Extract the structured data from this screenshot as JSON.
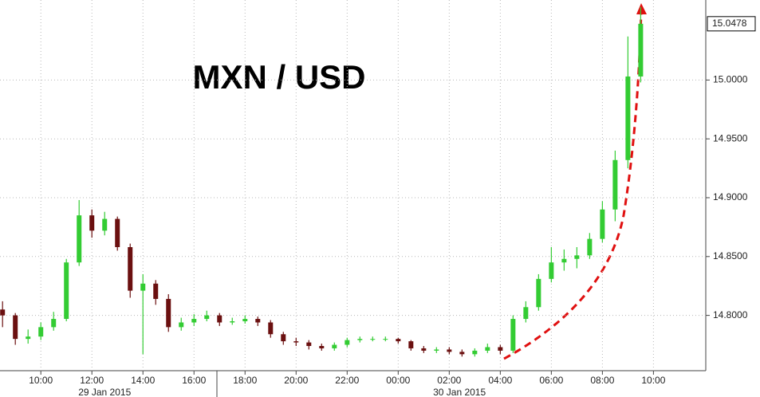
{
  "chart_data": {
    "type": "candlestick",
    "title": "MXN / USD",
    "x": [
      8.5,
      9,
      9.5,
      10,
      10.5,
      11,
      11.5,
      12,
      12.5,
      13,
      13.5,
      14,
      14.5,
      15,
      15.5,
      16,
      16.5,
      17,
      17.5,
      18,
      18.5,
      19,
      19.5,
      20,
      20.5,
      21,
      21.5,
      22,
      22.5,
      23,
      23.5,
      24,
      24.5,
      25,
      25.5,
      26,
      26.5,
      27,
      27.5,
      28,
      28.5,
      29,
      29.5,
      30,
      30.5,
      31,
      31.5,
      32,
      32.5,
      33,
      33.5
    ],
    "open": [
      14.805,
      14.8,
      14.78,
      14.782,
      14.79,
      14.797,
      14.845,
      14.885,
      14.872,
      14.882,
      14.858,
      14.821,
      14.827,
      14.814,
      14.79,
      14.794,
      14.797,
      14.8,
      14.794,
      14.795,
      14.797,
      14.794,
      14.784,
      14.778,
      14.777,
      14.774,
      14.772,
      14.775,
      14.779,
      14.78,
      14.78,
      14.78,
      14.778,
      14.772,
      14.77,
      14.771,
      14.769,
      14.767,
      14.77,
      14.773,
      14.77,
      14.797,
      14.807,
      14.831,
      14.845,
      14.848,
      14.851,
      14.865,
      14.89,
      14.932,
      15.003
    ],
    "high": [
      14.812,
      14.802,
      14.788,
      14.794,
      14.803,
      14.848,
      14.898,
      14.89,
      14.888,
      14.884,
      14.861,
      14.835,
      14.83,
      14.818,
      14.798,
      14.801,
      14.804,
      14.802,
      14.798,
      14.8,
      14.799,
      14.796,
      14.786,
      14.781,
      14.779,
      14.776,
      14.777,
      14.781,
      14.782,
      14.782,
      14.782,
      14.781,
      14.779,
      14.774,
      14.773,
      14.773,
      14.771,
      14.772,
      14.776,
      14.775,
      14.8,
      14.812,
      14.835,
      14.858,
      14.856,
      14.858,
      14.87,
      14.897,
      14.94,
      15.037,
      15.062
    ],
    "low": [
      14.79,
      14.775,
      14.776,
      14.779,
      14.787,
      14.795,
      14.842,
      14.866,
      14.868,
      14.855,
      14.815,
      14.767,
      14.809,
      14.786,
      14.787,
      14.791,
      14.795,
      14.791,
      14.792,
      14.793,
      14.791,
      14.781,
      14.775,
      14.774,
      14.771,
      14.77,
      14.77,
      14.773,
      14.777,
      14.778,
      14.778,
      14.776,
      14.77,
      14.768,
      14.768,
      14.767,
      14.765,
      14.765,
      14.768,
      14.767,
      14.768,
      14.794,
      14.804,
      14.828,
      14.838,
      14.84,
      14.848,
      14.862,
      14.88,
      14.925,
      14.998
    ],
    "close": [
      14.8,
      14.78,
      14.782,
      14.79,
      14.797,
      14.845,
      14.885,
      14.872,
      14.882,
      14.858,
      14.821,
      14.827,
      14.814,
      14.79,
      14.794,
      14.797,
      14.8,
      14.794,
      14.795,
      14.797,
      14.794,
      14.784,
      14.778,
      14.777,
      14.774,
      14.772,
      14.775,
      14.779,
      14.78,
      14.78,
      14.78,
      14.778,
      14.772,
      14.77,
      14.771,
      14.769,
      14.767,
      14.77,
      14.773,
      14.77,
      14.797,
      14.807,
      14.831,
      14.845,
      14.848,
      14.851,
      14.865,
      14.89,
      14.932,
      15.003,
      15.0478
    ],
    "last_label": "15.0478",
    "up_color": "#33cc33",
    "down_color": "#6b1010",
    "xlim": [
      8.4,
      36.05
    ],
    "xticks": [
      {
        "value": 10,
        "label": "10:00"
      },
      {
        "value": 12,
        "label": "12:00"
      },
      {
        "value": 14,
        "label": "14:00"
      },
      {
        "value": 16,
        "label": "16:00"
      },
      {
        "value": 18,
        "label": "18:00"
      },
      {
        "value": 20,
        "label": "20:00"
      },
      {
        "value": 22,
        "label": "22:00"
      },
      {
        "value": 24,
        "label": "00:00"
      },
      {
        "value": 26,
        "label": "02:00"
      },
      {
        "value": 28,
        "label": "04:00"
      },
      {
        "value": 30,
        "label": "06:00"
      },
      {
        "value": 32,
        "label": "08:00"
      },
      {
        "value": 34,
        "label": "10:00"
      }
    ],
    "dates": [
      {
        "value": 12.5,
        "label": "29 Jan 2015"
      },
      {
        "value": 26.4,
        "label": "30 Jan 2015"
      }
    ],
    "ylim": [
      14.753,
      15.068
    ],
    "yticks": [
      {
        "value": 14.8,
        "label": "14.8000"
      },
      {
        "value": 14.85,
        "label": "14.8500"
      },
      {
        "value": 14.9,
        "label": "14.9000"
      },
      {
        "value": 14.95,
        "label": "14.9500"
      },
      {
        "value": 15,
        "label": "15.0000"
      }
    ],
    "grid": true
  }
}
